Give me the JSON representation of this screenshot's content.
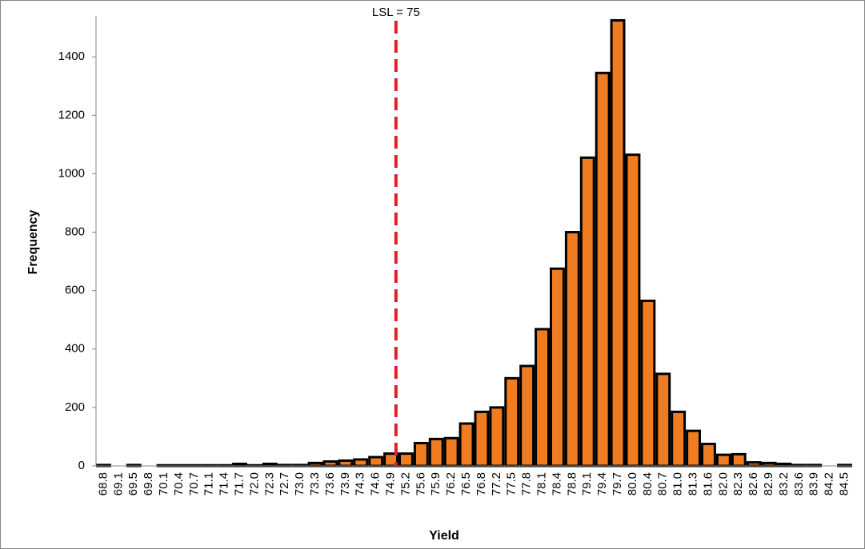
{
  "chart_data": {
    "type": "bar",
    "categories": [
      "68.8",
      "69.1",
      "69.5",
      "69.8",
      "70.1",
      "70.4",
      "70.7",
      "71.1",
      "71.4",
      "71.7",
      "72.0",
      "72.3",
      "72.7",
      "73.0",
      "73.3",
      "73.6",
      "73.9",
      "74.3",
      "74.6",
      "74.9",
      "75.2",
      "75.6",
      "75.9",
      "76.2",
      "76.5",
      "76.8",
      "77.2",
      "77.5",
      "77.8",
      "78.1",
      "78.4",
      "78.8",
      "79.1",
      "79.4",
      "79.7",
      "80.0",
      "80.4",
      "80.7",
      "81.0",
      "81.3",
      "81.6",
      "82.0",
      "82.3",
      "82.6",
      "82.9",
      "83.2",
      "83.6",
      "83.9",
      "84.2",
      "84.5"
    ],
    "values": [
      3,
      0,
      3,
      0,
      2,
      2,
      2,
      2,
      2,
      7,
      2,
      7,
      3,
      3,
      10,
      15,
      18,
      22,
      30,
      42,
      42,
      78,
      92,
      95,
      145,
      185,
      200,
      300,
      342,
      468,
      675,
      800,
      1055,
      1345,
      1525,
      1065,
      565,
      315,
      185,
      120,
      75,
      38,
      40,
      12,
      10,
      7,
      3,
      3,
      0,
      3
    ],
    "color": "#f07c22",
    "xlabel": "Yield",
    "ylabel": "Frequency",
    "ylim": [
      0,
      1540
    ],
    "yticks": [
      0,
      200,
      400,
      600,
      800,
      1000,
      1200,
      1400
    ],
    "annotations": [
      {
        "text": "LSL = 75",
        "x": 75,
        "color": "#e0202a"
      }
    ]
  }
}
